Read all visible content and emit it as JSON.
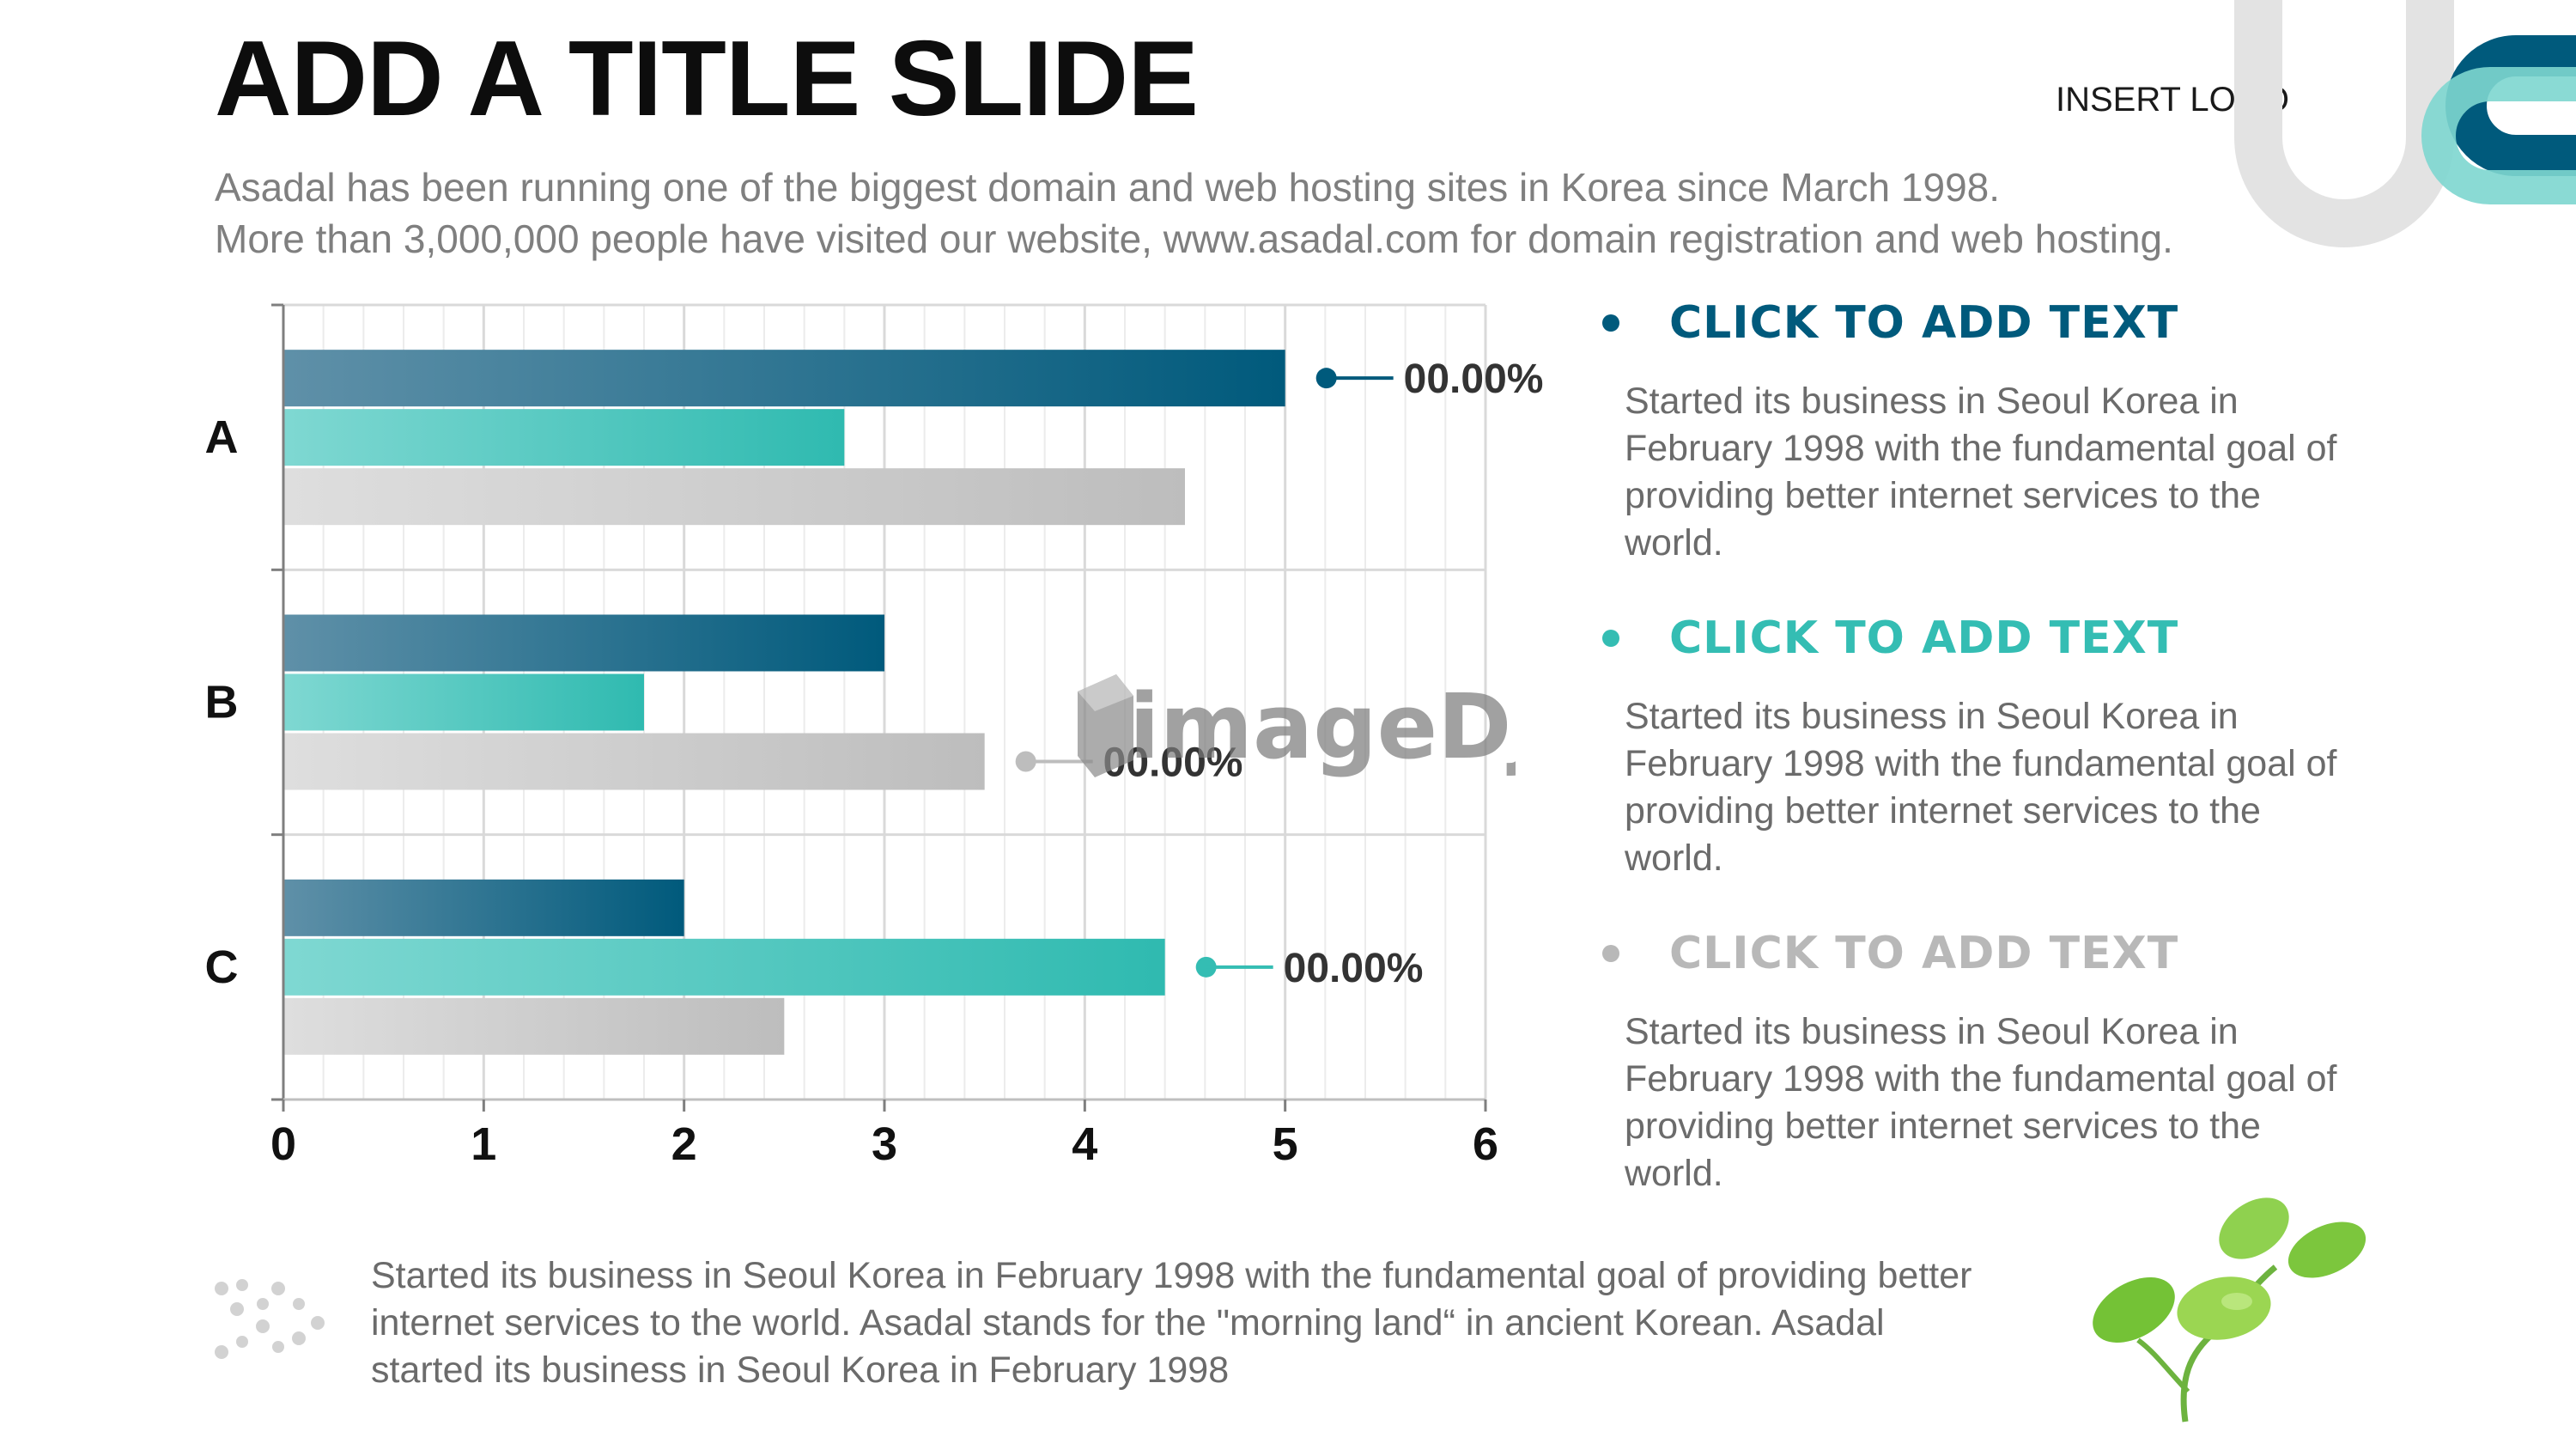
{
  "slide": {
    "title": "ADD A TITLE SLIDE",
    "subtitle_line1": "Asadal has been running one of the biggest domain and web hosting sites in Korea since March 1998.",
    "subtitle_line2": "More than 3,000,000 people have visited our website,  www.asadal.com for domain registration and web hosting.",
    "logo_text": "INSERT LOGO"
  },
  "colors": {
    "navy": "#005a7c",
    "teal": "#34bdb3",
    "gray": "#bdbdbd",
    "bullet_gray_title": "#b8b8b8"
  },
  "chart_data": {
    "type": "bar",
    "orientation": "horizontal",
    "categories": [
      "A",
      "B",
      "C"
    ],
    "series": [
      {
        "values": [
          5.0,
          3.0,
          2.0
        ]
      },
      {
        "values": [
          2.8,
          1.8,
          4.4
        ]
      },
      {
        "values": [
          4.5,
          3.5,
          2.5
        ]
      }
    ],
    "x_ticks": [
      "0",
      "1",
      "2",
      "3",
      "4",
      "5",
      "6"
    ],
    "xlim": [
      0,
      6
    ],
    "grid": true,
    "annotations": [
      {
        "category": "A",
        "series_index": 0,
        "text": "00.00%"
      },
      {
        "category": "B",
        "series_index": 2,
        "text": "00.00%"
      },
      {
        "category": "C",
        "series_index": 1,
        "text": "00.00%"
      }
    ]
  },
  "bullets": [
    {
      "title": "CLICK TO ADD TEXT",
      "body": "Started its business in Seoul Korea  in February 1998 with the fundamental goal of providing better internet services to the world.",
      "color": "#005a7c"
    },
    {
      "title": "CLICK TO ADD TEXT",
      "body": "Started its business in Seoul Korea  in February 1998 with the fundamental goal of providing better internet services to the world.",
      "color": "#34bdb3"
    },
    {
      "title": "CLICK TO ADD TEXT",
      "body": "Started its business in Seoul Korea  in February 1998 with the fundamental goal of providing better internet services to the world.",
      "color": "#b8b8b8"
    }
  ],
  "footer": {
    "text": "Started its business in Seoul Korea  in February 1998 with the fundamental goal of providing better internet services to the world. Asadal stands for the \"morning land“ in ancient Korean. Asadal started its business in Seoul Korea  in February 1998"
  },
  "watermark": {
    "text": "imageDJ"
  }
}
